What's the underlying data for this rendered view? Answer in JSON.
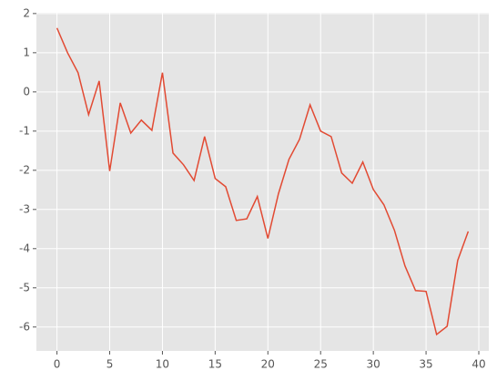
{
  "chart_data": {
    "type": "line",
    "x": [
      0,
      1,
      2,
      3,
      4,
      5,
      6,
      7,
      8,
      9,
      10,
      11,
      12,
      13,
      14,
      15,
      16,
      17,
      18,
      19,
      20,
      21,
      22,
      23,
      24,
      25,
      26,
      27,
      28,
      29,
      30,
      31,
      32,
      33,
      34,
      35,
      36,
      37,
      38,
      39
    ],
    "series": [
      {
        "color": "#E24A33",
        "values": [
          1.63,
          1.0,
          0.49,
          -0.58,
          0.28,
          -2.02,
          -0.28,
          -1.05,
          -0.72,
          -0.98,
          0.49,
          -1.56,
          -1.86,
          -2.26,
          -1.14,
          -2.21,
          -2.42,
          -3.28,
          -3.24,
          -2.67,
          -3.74,
          -2.6,
          -1.72,
          -1.21,
          -0.33,
          -1.0,
          -1.14,
          -2.07,
          -2.33,
          -1.79,
          -2.49,
          -2.88,
          -3.53,
          -4.44,
          -5.07,
          -5.09,
          -6.19,
          -5.98,
          -4.3,
          -3.56
        ]
      }
    ],
    "xlim": [
      -1.95,
      40.95
    ],
    "xticks": [
      0,
      5,
      10,
      15,
      20,
      25,
      30,
      35,
      40
    ],
    "ylim": [
      -6.61,
      2.02
    ],
    "yticks": [
      -6,
      -5,
      -4,
      -3,
      -2,
      -1,
      0,
      1,
      2
    ],
    "grid": true
  }
}
